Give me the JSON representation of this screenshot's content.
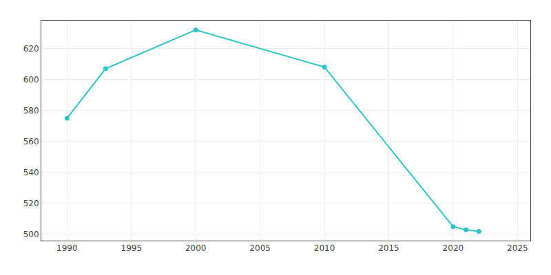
{
  "chart_data": {
    "type": "line",
    "x": [
      1990,
      1993,
      2000,
      2010,
      2020,
      2021,
      2022
    ],
    "values": [
      575,
      607,
      632,
      608,
      505,
      503,
      502
    ],
    "color": "#2EC4C4",
    "marker": "circle",
    "xlim": [
      1988,
      2026
    ],
    "xticks": [
      1990,
      1995,
      2000,
      2005,
      2010,
      2015,
      2020,
      2025
    ],
    "ylim": [
      496,
      638
    ],
    "yticks": [
      500,
      520,
      540,
      560,
      580,
      600,
      620
    ],
    "grid": true
  }
}
